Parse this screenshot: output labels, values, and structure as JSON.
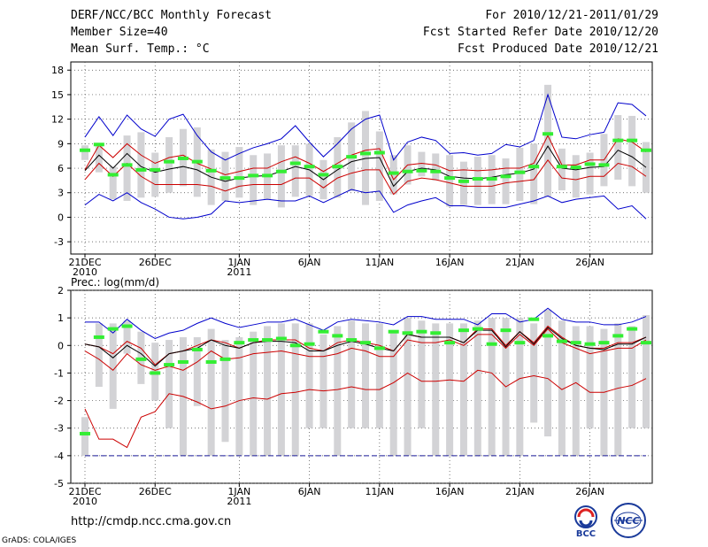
{
  "header": {
    "title": "DERF/NCC/BCC Monthly Forecast",
    "member_size": "Member Size=40",
    "variable": "Mean Surf. Temp.: °C",
    "period": "For 2010/12/21-2011/01/29",
    "start_date": "Fcst Started Refer Date 2010/12/20",
    "produced_date": "Fcst Produced Date 2010/12/21"
  },
  "footer": {
    "url": "http://cmdp.ncc.cma.gov.cn",
    "grads": "GrADS: COLA/IGES",
    "logo_bcc": "BCC",
    "logo_ncc": "NCC"
  },
  "colors": {
    "max_line": "#0000cc",
    "ensemble_line": "#cc0000",
    "mean_line": "#000000",
    "bar": "#d3d3d6",
    "marker": "#33ee33",
    "grid": "#444444"
  },
  "chart_data": [
    {
      "type": "line",
      "id": "temperature",
      "title": "Mean Surf. Temp.: °C",
      "ylim": [
        -4.5,
        19
      ],
      "yticks": [
        18,
        15,
        12,
        9,
        6,
        3,
        0,
        -3
      ],
      "xtick_labels": [
        {
          "day": 0,
          "label": "21DEC",
          "sub": "2010"
        },
        {
          "day": 5,
          "label": "26DEC",
          "sub": ""
        },
        {
          "day": 11,
          "label": "1JAN",
          "sub": "2011"
        },
        {
          "day": 16,
          "label": "6JAN",
          "sub": ""
        },
        {
          "day": 21,
          "label": "11JAN",
          "sub": ""
        },
        {
          "day": 26,
          "label": "16JAN",
          "sub": ""
        },
        {
          "day": 31,
          "label": "21JAN",
          "sub": ""
        },
        {
          "day": 36,
          "label": "26JAN",
          "sub": ""
        }
      ],
      "days": 40,
      "series": [
        {
          "name": "max",
          "color": "#0000cc",
          "values": [
            9.8,
            12.3,
            10.0,
            12.5,
            10.8,
            9.9,
            12.0,
            12.6,
            10.0,
            8.0,
            7.0,
            7.8,
            8.5,
            9.0,
            9.6,
            11.2,
            9.2,
            7.4,
            9.0,
            10.8,
            12.0,
            12.5,
            7.0,
            9.2,
            9.8,
            9.4,
            7.8,
            7.9,
            7.6,
            7.8,
            8.9,
            8.6,
            9.4,
            15.0,
            9.8,
            9.6,
            10.1,
            10.4,
            14.0,
            13.8,
            12.4
          ]
        },
        {
          "name": "upper_ensemble",
          "color": "#cc0000",
          "values": [
            5.8,
            8.8,
            7.3,
            9.0,
            7.6,
            6.6,
            7.3,
            7.6,
            6.6,
            5.9,
            5.2,
            5.6,
            6.0,
            6.0,
            6.8,
            7.4,
            6.6,
            5.6,
            6.6,
            7.6,
            8.2,
            8.4,
            4.6,
            6.4,
            6.6,
            6.4,
            5.7,
            5.8,
            5.7,
            5.8,
            6.0,
            6.0,
            6.6,
            10.0,
            6.4,
            6.4,
            7.0,
            7.0,
            9.6,
            9.2,
            8.0
          ]
        },
        {
          "name": "ensemble_mean",
          "color": "#000000",
          "values": [
            5.7,
            7.6,
            6.0,
            7.8,
            6.2,
            5.5,
            5.9,
            6.2,
            5.8,
            4.9,
            4.4,
            4.8,
            5.0,
            5.1,
            5.6,
            6.2,
            5.8,
            4.6,
            5.8,
            6.8,
            7.2,
            7.3,
            3.8,
            5.6,
            6.0,
            5.8,
            5.0,
            4.8,
            4.7,
            4.9,
            5.2,
            5.4,
            5.9,
            8.7,
            6.0,
            5.8,
            6.1,
            6.2,
            8.2,
            7.4,
            6.1
          ]
        },
        {
          "name": "lower_ensemble",
          "color": "#cc0000",
          "values": [
            4.6,
            6.6,
            5.0,
            6.6,
            5.0,
            4.0,
            4.0,
            4.0,
            4.0,
            3.8,
            3.2,
            3.8,
            4.0,
            4.0,
            4.0,
            4.8,
            4.8,
            3.6,
            4.8,
            5.4,
            5.8,
            5.8,
            2.8,
            4.4,
            4.8,
            4.6,
            4.2,
            3.8,
            3.8,
            3.8,
            4.2,
            4.4,
            4.6,
            7.0,
            4.8,
            4.6,
            5.0,
            5.0,
            6.6,
            6.2,
            5.0
          ]
        },
        {
          "name": "min",
          "color": "#0000cc",
          "values": [
            1.5,
            2.8,
            2.0,
            3.0,
            1.8,
            1.0,
            0.0,
            -0.2,
            0.0,
            0.4,
            2.0,
            1.8,
            2.0,
            2.2,
            2.0,
            2.0,
            2.6,
            1.8,
            2.6,
            3.4,
            3.0,
            3.2,
            0.6,
            1.5,
            2.0,
            2.4,
            1.4,
            1.4,
            1.2,
            1.2,
            1.2,
            1.6,
            2.0,
            2.6,
            1.8,
            2.2,
            2.4,
            2.6,
            1.0,
            1.4,
            -0.2
          ]
        }
      ],
      "bars": {
        "color": "#d3d3d6",
        "low": [
          7.0,
          5.5,
          2.2,
          2.0,
          2.4,
          2.5,
          3.0,
          3.8,
          2.5,
          1.5,
          2.0,
          2.4,
          1.5,
          2.2,
          1.2,
          2.5,
          2.6,
          2.2,
          2.4,
          3.2,
          1.5,
          2.0,
          2.8,
          4.0,
          5.0,
          4.5,
          1.3,
          1.5,
          1.5,
          1.6,
          1.6,
          2.0,
          1.6,
          2.5,
          3.3,
          2.4,
          2.8,
          3.8,
          4.6,
          3.8,
          3.0
        ],
        "high": [
          8.8,
          9.0,
          6.2,
          10.0,
          10.4,
          7.9,
          9.8,
          10.8,
          11.0,
          8.3,
          8.0,
          8.6,
          7.6,
          7.8,
          8.8,
          8.8,
          9.0,
          7.0,
          9.8,
          11.6,
          13.0,
          10.5,
          7.6,
          8.8,
          8.0,
          7.8,
          7.6,
          6.8,
          7.4,
          7.6,
          7.2,
          8.5,
          9.0,
          16.2,
          8.4,
          7.6,
          7.9,
          10.2,
          12.5,
          12.4,
          9.2
        ]
      },
      "markers": {
        "color": "#33ee33",
        "values": [
          8.2,
          8.9,
          5.2,
          6.4,
          5.8,
          5.8,
          6.8,
          7.2,
          6.8,
          5.7,
          4.8,
          4.8,
          5.1,
          5.1,
          5.6,
          6.6,
          6.2,
          5.2,
          6.2,
          7.4,
          7.8,
          7.9,
          5.4,
          5.6,
          5.7,
          5.6,
          4.8,
          4.4,
          4.7,
          4.7,
          5.0,
          5.5,
          6.2,
          10.2,
          6.2,
          6.1,
          6.5,
          6.4,
          9.4,
          9.4,
          8.2
        ]
      }
    },
    {
      "type": "line",
      "id": "precipitation",
      "title": "Prec.: log(mm/d)",
      "ylim": [
        -5,
        2
      ],
      "yticks": [
        2,
        1,
        0,
        -1,
        -2,
        -3,
        -4,
        -5
      ],
      "xtick_labels": [
        {
          "day": 0,
          "label": "21DEC",
          "sub": "2010"
        },
        {
          "day": 5,
          "label": "26DEC",
          "sub": ""
        },
        {
          "day": 11,
          "label": "1JAN",
          "sub": "2011"
        },
        {
          "day": 16,
          "label": "6JAN",
          "sub": ""
        },
        {
          "day": 21,
          "label": "11JAN",
          "sub": ""
        },
        {
          "day": 26,
          "label": "16JAN",
          "sub": ""
        },
        {
          "day": 31,
          "label": "21JAN",
          "sub": ""
        },
        {
          "day": 36,
          "label": "26JAN",
          "sub": ""
        }
      ],
      "days": 40,
      "series": [
        {
          "name": "max",
          "color": "#0000cc",
          "values": [
            0.85,
            0.85,
            0.45,
            0.95,
            0.55,
            0.25,
            0.45,
            0.55,
            0.8,
            1.0,
            0.8,
            0.65,
            0.75,
            0.85,
            0.85,
            0.95,
            0.75,
            0.55,
            0.85,
            0.95,
            0.9,
            0.85,
            0.75,
            1.05,
            1.05,
            0.95,
            0.95,
            0.95,
            0.75,
            1.15,
            1.15,
            0.85,
            0.95,
            1.35,
            0.95,
            0.85,
            0.85,
            0.75,
            0.75,
            0.85,
            1.05
          ]
        },
        {
          "name": "upper_ensemble",
          "color": "#cc0000",
          "values": [
            0.05,
            -0.05,
            -0.3,
            0.15,
            -0.1,
            -0.7,
            -0.3,
            -0.2,
            0.0,
            0.2,
            0.1,
            -0.1,
            0.1,
            0.2,
            0.2,
            0.2,
            -0.1,
            -0.2,
            0.1,
            0.2,
            0.1,
            0.0,
            -0.2,
            0.4,
            0.3,
            0.3,
            0.3,
            0.1,
            0.6,
            0.6,
            0.0,
            0.5,
            0.1,
            0.7,
            0.3,
            0.0,
            -0.1,
            -0.1,
            0.1,
            0.1,
            0.3
          ]
        },
        {
          "name": "ensemble_mean",
          "color": "#000000",
          "values": [
            0.05,
            -0.05,
            -0.45,
            0.0,
            -0.3,
            -0.75,
            -0.3,
            -0.2,
            -0.1,
            0.2,
            0.0,
            -0.1,
            0.1,
            0.15,
            0.15,
            0.1,
            -0.2,
            -0.2,
            0.0,
            0.15,
            0.05,
            -0.1,
            -0.2,
            0.4,
            0.3,
            0.3,
            0.3,
            0.1,
            0.55,
            0.55,
            -0.05,
            0.5,
            0.05,
            0.65,
            0.25,
            0.0,
            -0.1,
            -0.15,
            0.05,
            0.05,
            0.3
          ]
        },
        {
          "name": "lower_ensemble",
          "color": "#cc0000",
          "values": [
            -0.2,
            -0.5,
            -0.9,
            -0.3,
            -0.7,
            -0.9,
            -0.75,
            -0.9,
            -0.6,
            -0.2,
            -0.5,
            -0.45,
            -0.3,
            -0.25,
            -0.2,
            -0.3,
            -0.4,
            -0.4,
            -0.3,
            -0.1,
            -0.2,
            -0.4,
            -0.4,
            0.2,
            0.1,
            0.1,
            0.2,
            0.0,
            0.4,
            0.4,
            -0.1,
            0.4,
            0.0,
            0.6,
            0.1,
            -0.1,
            -0.3,
            -0.2,
            -0.1,
            -0.1,
            0.2
          ]
        },
        {
          "name": "min",
          "color": "#cc0000",
          "values": [
            -2.3,
            -3.4,
            -3.4,
            -3.7,
            -2.6,
            -2.4,
            -1.75,
            -1.85,
            -2.05,
            -2.3,
            -2.2,
            -2.0,
            -1.9,
            -1.95,
            -1.75,
            -1.7,
            -1.6,
            -1.65,
            -1.6,
            -1.5,
            -1.6,
            -1.6,
            -1.35,
            -1.0,
            -1.3,
            -1.3,
            -1.25,
            -1.3,
            -0.9,
            -1.0,
            -1.5,
            -1.2,
            -1.1,
            -1.2,
            -1.6,
            -1.35,
            -1.7,
            -1.7,
            -1.55,
            -1.45,
            -1.2
          ]
        }
      ],
      "bars": {
        "color": "#d3d3d6",
        "low": [
          -4.0,
          -1.5,
          -2.3,
          -0.3,
          -1.4,
          -2.0,
          -3.0,
          -4.0,
          -2.2,
          -4.0,
          -3.5,
          -4.0,
          -4.0,
          -4.0,
          -4.0,
          -4.0,
          -3.0,
          -3.0,
          -4.0,
          -3.0,
          -3.0,
          -3.0,
          -4.0,
          -4.0,
          -3.0,
          -4.0,
          -4.0,
          -4.0,
          -4.0,
          -4.0,
          -4.0,
          -4.0,
          -2.8,
          -3.3,
          -4.0,
          -4.0,
          -3.0,
          -4.0,
          -4.0,
          -3.0,
          -3.0
        ],
        "high": [
          -2.6,
          0.8,
          0.8,
          0.9,
          0.5,
          0.1,
          0.2,
          0.3,
          0.3,
          0.6,
          0.2,
          0.3,
          0.5,
          0.7,
          0.8,
          0.8,
          0.8,
          0.4,
          0.7,
          0.9,
          0.8,
          0.8,
          0.5,
          1.0,
          0.9,
          0.8,
          0.8,
          0.8,
          0.9,
          1.0,
          1.0,
          1.0,
          0.8,
          1.3,
          0.9,
          0.7,
          0.7,
          0.6,
          0.8,
          0.7,
          1.1
        ]
      },
      "markers": {
        "color": "#33ee33",
        "values": [
          -3.2,
          0.3,
          0.6,
          0.7,
          -0.5,
          -1.0,
          -0.7,
          -0.6,
          -0.15,
          -0.6,
          -0.5,
          0.1,
          0.2,
          0.2,
          0.25,
          0.0,
          0.05,
          0.5,
          0.35,
          0.2,
          0.1,
          -0.1,
          0.5,
          0.45,
          0.5,
          0.45,
          0.1,
          0.55,
          0.6,
          0.05,
          0.55,
          0.1,
          0.95,
          0.35,
          0.15,
          0.1,
          0.05,
          0.1,
          0.35,
          0.6,
          0.1
        ]
      }
    }
  ]
}
